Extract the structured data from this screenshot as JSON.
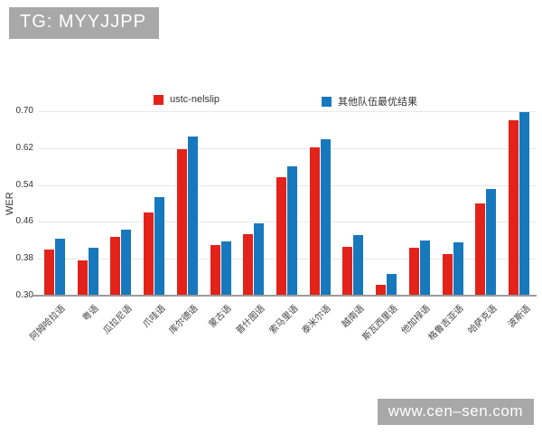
{
  "header": {
    "tag": "TG: MYYJJPP"
  },
  "watermark": {
    "url": "www.cen–sen.com"
  },
  "legend": [
    {
      "label": "ustc-nelslip",
      "color": "#e32219"
    },
    {
      "label": "其他队伍最优结果",
      "color": "#1878bd"
    }
  ],
  "chart_data": {
    "type": "bar",
    "title": "",
    "xlabel": "",
    "ylabel": "WER",
    "ylim": [
      0.3,
      0.7
    ],
    "yticks": [
      0.3,
      0.38,
      0.46,
      0.54,
      0.62,
      0.7
    ],
    "grid": true,
    "legend_position": "top",
    "categories": [
      "阿姆哈拉语",
      "粤语",
      "瓜拉尼语",
      "爪哇语",
      "库尔德语",
      "蒙古语",
      "普什图语",
      "索马里语",
      "泰米尔语",
      "越南语",
      "斯瓦西里语",
      "他加禄语",
      "格鲁吉亚语",
      "哈萨克语",
      "波斯语"
    ],
    "series": [
      {
        "name": "ustc-nelslip",
        "color": "#e32219",
        "values": [
          0.4,
          0.377,
          0.428,
          0.481,
          0.617,
          0.41,
          0.433,
          0.556,
          0.622,
          0.405,
          0.324,
          0.404,
          0.391,
          0.5,
          0.681
        ]
      },
      {
        "name": "其他队伍最优结果",
        "color": "#1878bd",
        "values": [
          0.423,
          0.403,
          0.443,
          0.513,
          0.645,
          0.418,
          0.456,
          0.581,
          0.64,
          0.431,
          0.347,
          0.419,
          0.416,
          0.532,
          0.699
        ]
      }
    ]
  }
}
